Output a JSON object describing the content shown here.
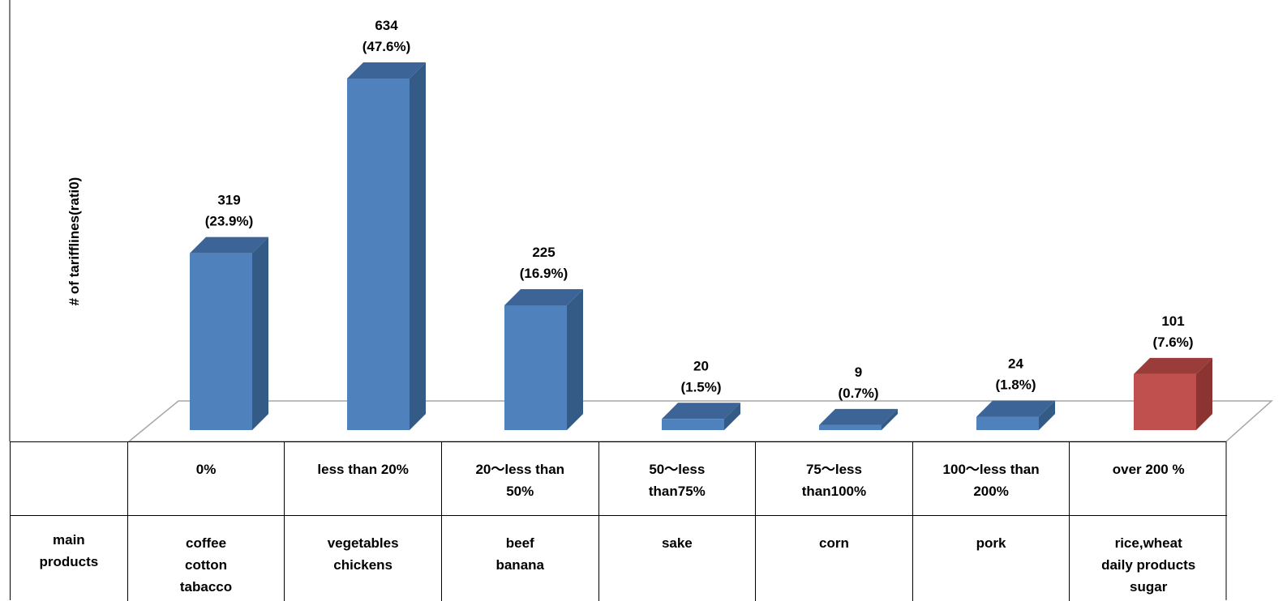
{
  "chart_data": {
    "type": "bar",
    "ylabel": "# of tarifflines(rati0)",
    "categories": [
      "0%",
      "less than 20%",
      "20～less than\n50%",
      "50～less\nthan75%",
      "75～less\nthan100%",
      "100～less than\n200%",
      "over 200 %"
    ],
    "values": [
      319,
      634,
      225,
      20,
      9,
      24,
      101
    ],
    "value_labels": [
      "319",
      "634",
      "225",
      "20",
      "9",
      "24",
      "101"
    ],
    "percent_labels": [
      "(23.9%)",
      "(47.6%)",
      "(16.9%)",
      "(1.5%)",
      "(0.7%)",
      "(1.8%)",
      "(7.6%)"
    ],
    "highlight_index": 6,
    "colors": {
      "bar_front": "#4f81bd",
      "bar_side": "#345b86",
      "bar_top": "#3d6496",
      "highlight_front": "#c0504d",
      "highlight_side": "#8c3431",
      "highlight_top": "#993c3a",
      "floor_line": "#a6a6a6"
    }
  },
  "table": {
    "row_header_1": "",
    "row_header_2": "main\nproducts",
    "main_products": [
      "coffee\ncotton\ntabacco",
      "vegetables\nchickens",
      "beef\nbanana",
      "sake",
      "corn",
      "pork",
      "rice,wheat\ndaily products\nsugar"
    ]
  }
}
